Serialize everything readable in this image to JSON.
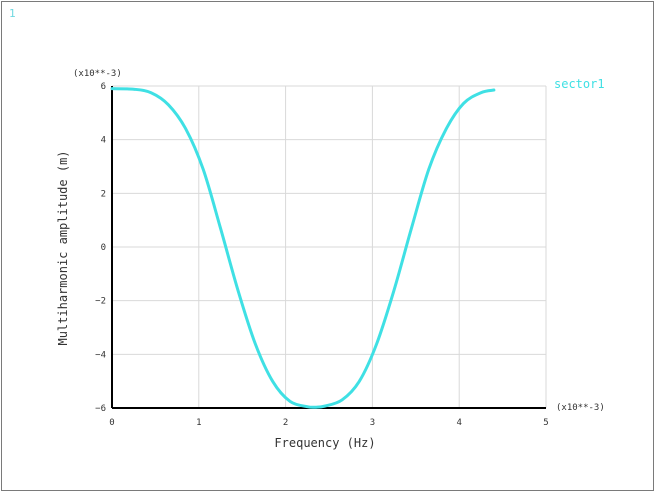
{
  "window": {
    "number": "1"
  },
  "chart_data": {
    "type": "line",
    "xlabel": "Frequency (Hz)",
    "ylabel": "Multiharmonic amplitude (m)",
    "x_multiplier": "(x10**-3)",
    "y_multiplier": "(x10**-3)",
    "xlim": [
      0,
      5
    ],
    "ylim": [
      -6,
      6
    ],
    "x_ticks": [
      0,
      1,
      2,
      3,
      4,
      5
    ],
    "y_ticks": [
      -6,
      -4,
      -2,
      0,
      2,
      4,
      6
    ],
    "grid": true,
    "legend_position": "top-right",
    "series": [
      {
        "name": "sector1",
        "color": "#3fe0e4",
        "x": [
          0,
          0.25,
          0.45,
          0.65,
          0.85,
          1.05,
          1.25,
          1.45,
          1.65,
          1.85,
          2.05,
          2.25,
          2.35,
          2.45,
          2.65,
          2.85,
          3.05,
          3.25,
          3.45,
          3.65,
          3.85,
          4.05,
          4.25,
          4.4
        ],
        "values": [
          5.9,
          5.88,
          5.75,
          5.3,
          4.4,
          2.9,
          0.7,
          -1.6,
          -3.6,
          -5.0,
          -5.75,
          -5.95,
          -5.97,
          -5.93,
          -5.7,
          -5.0,
          -3.6,
          -1.6,
          0.7,
          2.9,
          4.4,
          5.35,
          5.75,
          5.85
        ]
      }
    ]
  }
}
